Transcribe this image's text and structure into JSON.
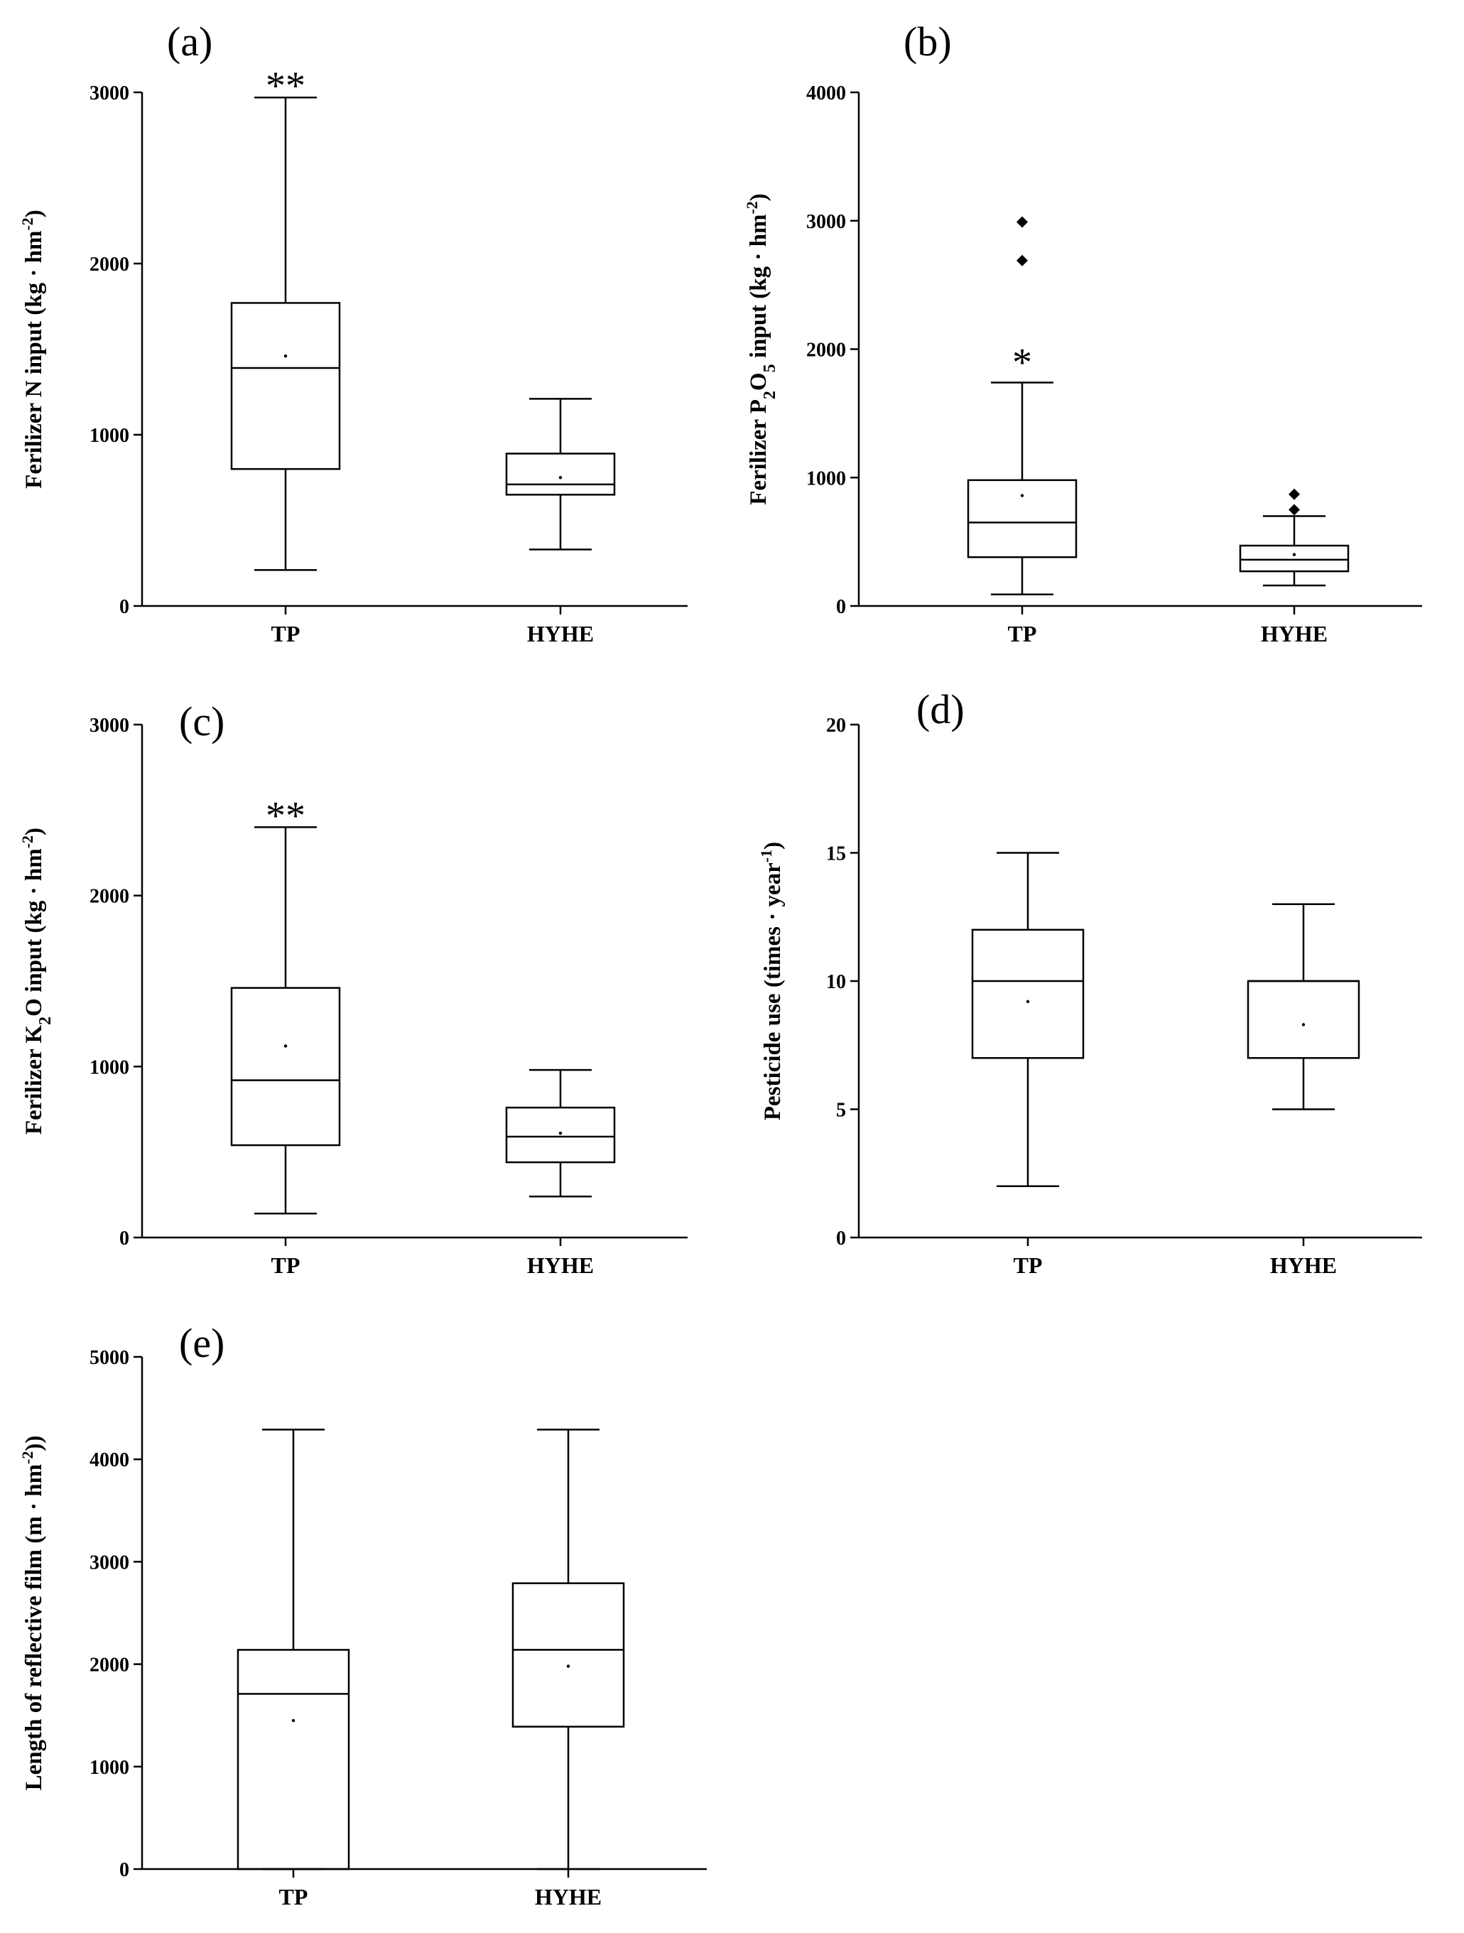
{
  "chart_data": [
    {
      "panel": "a",
      "type": "boxplot",
      "title": "(a)",
      "xlabel": "",
      "ylabel": "Ferilizer N input (kg · hm⁻²)",
      "ylim": [
        0,
        3000
      ],
      "yticks": [
        0,
        1000,
        2000,
        3000
      ],
      "categories": [
        "TP",
        "HYHE"
      ],
      "boxes": [
        {
          "category": "TP",
          "whisker_low": 210,
          "q1": 800,
          "median": 1390,
          "q3": 1770,
          "whisker_high": 2970,
          "mean": 1460,
          "outliers": [],
          "annotation": "**"
        },
        {
          "category": "HYHE",
          "whisker_low": 330,
          "q1": 650,
          "median": 710,
          "q3": 890,
          "whisker_high": 1210,
          "mean": 750,
          "outliers": [],
          "annotation": ""
        }
      ]
    },
    {
      "panel": "b",
      "type": "boxplot",
      "title": "(b)",
      "xlabel": "",
      "ylabel": "Ferilizer P₂O₅ input (kg · hm⁻²)",
      "ylim": [
        0,
        4000
      ],
      "yticks": [
        0,
        1000,
        2000,
        3000,
        4000
      ],
      "categories": [
        "TP",
        "HYHE"
      ],
      "boxes": [
        {
          "category": "TP",
          "whisker_low": 90,
          "q1": 380,
          "median": 650,
          "q3": 980,
          "whisker_high": 1740,
          "mean": 860,
          "outliers": [
            2990,
            2690
          ],
          "annotation": "*"
        },
        {
          "category": "HYHE",
          "whisker_low": 160,
          "q1": 270,
          "median": 360,
          "q3": 470,
          "whisker_high": 700,
          "mean": 400,
          "outliers": [
            870,
            750
          ],
          "annotation": ""
        }
      ]
    },
    {
      "panel": "c",
      "type": "boxplot",
      "title": "(c)",
      "xlabel": "",
      "ylabel": "Ferilizer K₂O input (kg · hm⁻²)",
      "ylim": [
        0,
        3000
      ],
      "yticks": [
        0,
        1000,
        2000,
        3000
      ],
      "categories": [
        "TP",
        "HYHE"
      ],
      "boxes": [
        {
          "category": "TP",
          "whisker_low": 140,
          "q1": 540,
          "median": 920,
          "q3": 1460,
          "whisker_high": 2400,
          "mean": 1120,
          "outliers": [],
          "annotation": "**"
        },
        {
          "category": "HYHE",
          "whisker_low": 240,
          "q1": 440,
          "median": 590,
          "q3": 760,
          "whisker_high": 980,
          "mean": 610,
          "outliers": [],
          "annotation": ""
        }
      ]
    },
    {
      "panel": "d",
      "type": "boxplot",
      "title": "(d)",
      "xlabel": "",
      "ylabel": "Pesticide use (times · year⁻¹)",
      "ylim": [
        0,
        20
      ],
      "yticks": [
        0,
        5,
        10,
        15,
        20
      ],
      "categories": [
        "TP",
        "HYHE"
      ],
      "boxes": [
        {
          "category": "TP",
          "whisker_low": 2,
          "q1": 7,
          "median": 10,
          "q3": 12,
          "whisker_high": 15,
          "mean": 9.2,
          "outliers": [],
          "annotation": ""
        },
        {
          "category": "HYHE",
          "whisker_low": 5,
          "q1": 7,
          "median": 10,
          "q3": 10,
          "whisker_high": 13,
          "mean": 8.3,
          "outliers": [],
          "annotation": ""
        }
      ]
    },
    {
      "panel": "e",
      "type": "boxplot",
      "title": "(e)",
      "xlabel": "",
      "ylabel": "Length of reflective film (m · hm⁻²))",
      "ylim": [
        0,
        5000
      ],
      "yticks": [
        0,
        1000,
        2000,
        3000,
        4000,
        5000
      ],
      "categories": [
        "TP",
        "HYHE"
      ],
      "boxes": [
        {
          "category": "TP",
          "whisker_low": 0,
          "q1": 0,
          "median": 1710,
          "q3": 2140,
          "whisker_high": 4290,
          "mean": 1450,
          "outliers": [],
          "annotation": ""
        },
        {
          "category": "HYHE",
          "whisker_low": 0,
          "q1": 1390,
          "median": 2140,
          "q3": 2790,
          "whisker_high": 4290,
          "mean": 1980,
          "outliers": [],
          "annotation": ""
        }
      ]
    }
  ]
}
